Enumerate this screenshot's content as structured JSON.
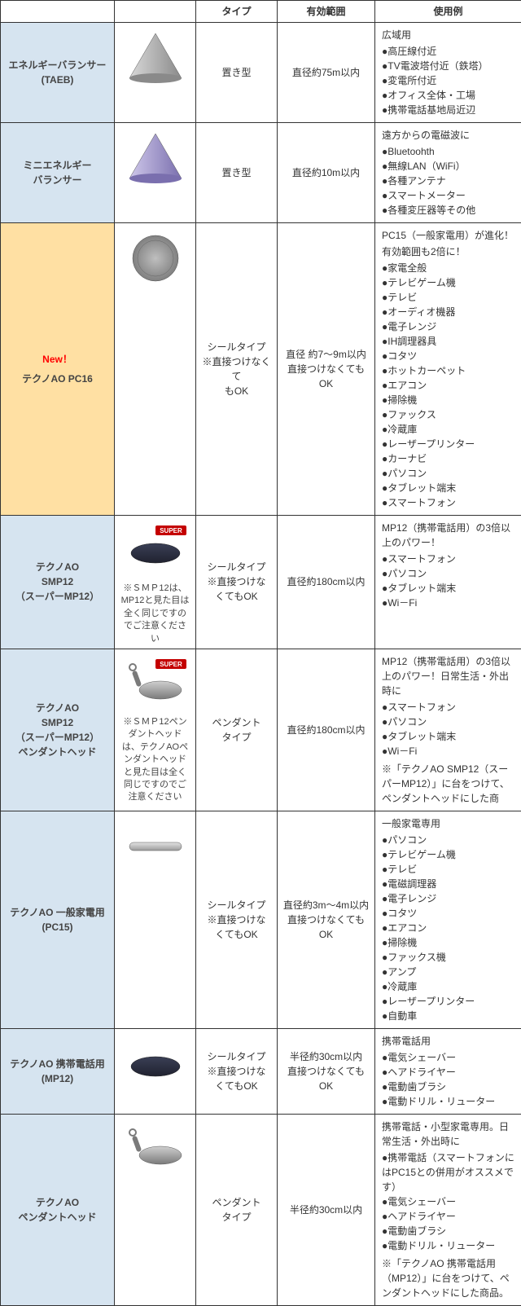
{
  "colors": {
    "border": "#333333",
    "name_bg": "#d6e4f0",
    "highlight_bg": "#ffe0a3",
    "new_color": "#ff0000",
    "text": "#333333"
  },
  "headers": {
    "name": "",
    "image": "",
    "type": "タイプ",
    "range": "有効範囲",
    "usage": "使用例"
  },
  "rows": [
    {
      "id": "taeb",
      "name_lines": [
        "エネルギーバランサー",
        "(TAEB)"
      ],
      "icon": "cone-silver",
      "type_lines": [
        "置き型"
      ],
      "range_lines": [
        "直径約75m以内"
      ],
      "use_head": [
        "広域用"
      ],
      "use_items": [
        "高圧線付近",
        "TV電波塔付近（鉄塔）",
        "変電所付近",
        "オフィス全体・工場",
        "携帯電話基地局近辺"
      ]
    },
    {
      "id": "mini",
      "name_lines": [
        "ミニエネルギー",
        "バランサー"
      ],
      "icon": "cone-purple",
      "type_lines": [
        "置き型"
      ],
      "range_lines": [
        "直径約10m以内"
      ],
      "use_head": [
        "遠方からの電磁波に"
      ],
      "use_items": [
        "Bluetoohth",
        "無線LAN（WiFi）",
        "各種アンテナ",
        "スマートメーター",
        "各種変圧器等その他"
      ]
    },
    {
      "id": "pc16",
      "highlight": true,
      "new_label": "New！",
      "name_lines": [
        "テクノAO PC16"
      ],
      "icon": "disc-silver",
      "type_lines": [
        "シールタイプ",
        "※直接つけなくて",
        "もOK"
      ],
      "range_lines": [
        "直径 約7〜9m以内",
        "直接つけなくても",
        "OK"
      ],
      "use_head": [
        "PC15（一般家電用）が進化！",
        "有効範囲も2倍に！"
      ],
      "use_items": [
        "家電全般",
        "テレビゲーム機",
        "テレビ",
        "オーディオ機器",
        "電子レンジ",
        "IH調理器具",
        "コタツ",
        "ホットカーペット",
        "エアコン",
        "掃除機",
        "ファックス",
        "冷蔵庫",
        "レーザープリンター",
        "カーナビ",
        "パソコン",
        "タブレット端末",
        "スマートフォン"
      ]
    },
    {
      "id": "smp12",
      "name_lines": [
        "テクノAO",
        "SMP12",
        "（スーパーMP12）"
      ],
      "icon": "oval-dark-super",
      "img_note": "※ＳＭＰ12は、MP12と見た目は全く同じですのでご注意ください",
      "type_lines": [
        "シールタイプ",
        "※直接つけな",
        "くてもOK"
      ],
      "range_lines": [
        "直径約180cm以内"
      ],
      "use_head": [
        "MP12（携帯電話用）の3倍以上のパワー！"
      ],
      "use_items": [
        "スマートフォン",
        "パソコン",
        "タブレット端末",
        "Wi－Fi"
      ]
    },
    {
      "id": "smp12ph",
      "name_lines": [
        "テクノAO",
        "SMP12",
        "（スーパーMP12）",
        "ペンダントヘッド"
      ],
      "icon": "pendant-super",
      "img_note": "※ＳＭＰ12ペンダントヘッドは、テクノAOペンダントヘッドと見た目は全く同じですのでご注意ください",
      "type_lines": [
        "ペンダント",
        "タイプ"
      ],
      "range_lines": [
        "直径約180cm以内"
      ],
      "use_head": [
        "MP12（携帯電話用）の3倍以上のパワー！日常生活・外出時に"
      ],
      "use_items": [
        "スマートフォン",
        "パソコン",
        "タブレット端末",
        "Wi－Fi"
      ],
      "use_note": "※「テクノAO SMP12（スーパーMP12）」に台をつけて、ペンダントヘッドにした商"
    },
    {
      "id": "pc15",
      "name_lines": [
        "テクノAO 一般家電用",
        "(PC15)"
      ],
      "icon": "bar-silver",
      "type_lines": [
        "シールタイプ",
        "※直接つけな",
        "くてもOK"
      ],
      "range_lines": [
        "直径約3m〜4m以内",
        "直接つけなくてもOK"
      ],
      "use_head": [
        "一般家電専用"
      ],
      "use_items": [
        "パソコン",
        "テレビゲーム機",
        "テレビ",
        "電磁調理器",
        "電子レンジ",
        "コタツ",
        "エアコン",
        "掃除機",
        "ファックス機",
        "アンプ",
        "冷蔵庫",
        "レーザープリンター",
        "自動車"
      ]
    },
    {
      "id": "mp12",
      "name_lines": [
        "テクノAO 携帯電話用",
        "(MP12)"
      ],
      "icon": "oval-dark",
      "type_lines": [
        "シールタイプ",
        "※直接つけな",
        "くてもOK"
      ],
      "range_lines": [
        "半径約30cm以内",
        "直接つけなくてもOK"
      ],
      "use_head": [
        "携帯電話用"
      ],
      "use_items": [
        "電気シェーバー",
        "ヘアドライヤー",
        "電動歯ブラシ",
        "電動ドリル・リューター"
      ]
    },
    {
      "id": "pendant",
      "name_lines": [
        "テクノAO",
        "ペンダントヘッド"
      ],
      "icon": "pendant",
      "type_lines": [
        "ペンダント",
        "タイプ"
      ],
      "range_lines": [
        "半径約30cm以内"
      ],
      "use_head": [
        "携帯電話・小型家電専用。日常生活・外出時に"
      ],
      "use_items": [
        "携帯電話（スマートフォンにはPC15との併用がオススメです）",
        "電気シェーバー",
        "ヘアドライヤー",
        "電動歯ブラシ",
        "電動ドリル・リューター"
      ],
      "use_note": "※「テクノAO 携帯電話用（MP12）」に台をつけて、ペンダントヘッドにした商品。"
    }
  ],
  "icons": {
    "cone-silver": {
      "fill1": "#d9d9d9",
      "fill2": "#8a8a8a"
    },
    "cone-purple": {
      "fill1": "#cfc8ea",
      "fill2": "#7a6fae"
    },
    "disc-silver": {
      "fill1": "#bfbfbf",
      "fill2": "#808080"
    },
    "oval-dark": {
      "fill1": "#3a3f55",
      "fill2": "#202230"
    },
    "oval-dark-super": {
      "fill1": "#3a3f55",
      "fill2": "#202230",
      "badge": "SUPER",
      "badge_bg": "#c40000"
    },
    "bar-silver": {
      "fill1": "#e3e3e3",
      "fill2": "#9a9a9a"
    },
    "pendant": {
      "fill1": "#d0d0d0",
      "fill2": "#7a7a7a"
    },
    "pendant-super": {
      "fill1": "#d0d0d0",
      "fill2": "#7a7a7a",
      "badge": "SUPER",
      "badge_bg": "#c40000"
    }
  }
}
